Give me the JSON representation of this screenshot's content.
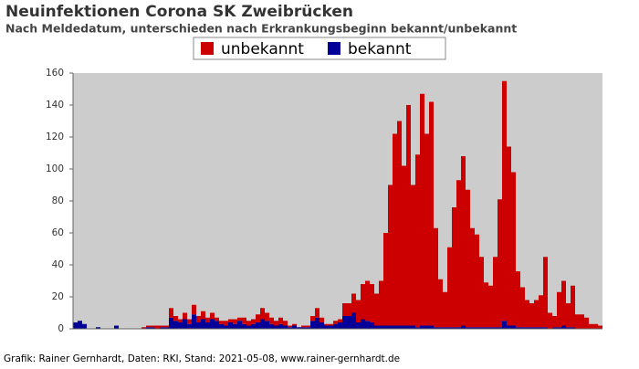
{
  "chart_data": {
    "type": "stacked-bar",
    "title": "Neuinfektionen Corona SK Zweibrücken",
    "subtitle": "Nach Meldedatum, unterschieden nach Erkrankungsbeginn bekannt/unbekannt",
    "footer": "Grafik: Rainer Gernhardt, Daten: RKI, Stand: 2021-05-08, www.rainer-gernhardt.de",
    "categories": [
      null,
      null,
      null,
      null,
      null,
      null,
      null,
      null,
      null,
      null,
      null,
      null,
      null,
      null,
      null,
      null,
      null,
      null,
      null,
      null,
      null,
      null,
      null,
      null,
      null,
      null,
      null,
      null,
      null,
      null,
      null,
      null,
      null,
      null,
      null,
      null,
      null,
      null,
      null,
      null,
      null,
      null,
      null,
      null,
      null,
      null,
      null,
      null,
      null,
      null,
      null,
      null,
      null,
      null,
      null,
      null,
      null,
      null,
      null,
      null,
      null,
      null,
      null,
      null,
      null,
      null,
      null,
      null,
      null,
      null,
      null,
      null,
      null,
      null,
      null,
      null,
      null,
      null,
      null,
      null,
      null,
      null,
      null,
      null,
      null,
      null,
      null,
      null,
      null,
      null,
      null,
      null,
      null,
      null,
      null,
      null,
      null,
      null,
      null,
      null,
      null,
      null,
      null,
      null,
      null,
      null,
      null,
      null,
      null,
      null,
      null,
      null,
      null,
      null,
      null,
      null
    ],
    "series": [
      {
        "name": "unbekannt",
        "color": "#cc0000",
        "values": [
          0,
          0,
          0,
          0,
          0,
          0,
          0,
          0,
          0,
          0,
          0,
          0,
          0,
          0,
          0,
          1,
          1,
          1,
          2,
          1,
          1,
          6,
          3,
          2,
          4,
          3,
          6,
          4,
          5,
          3,
          4,
          2,
          2,
          3,
          2,
          3,
          2,
          4,
          3,
          3,
          5,
          7,
          5,
          4,
          3,
          4,
          3,
          1,
          1,
          0,
          1,
          1,
          3,
          6,
          3,
          1,
          1,
          2,
          2,
          8,
          8,
          12,
          14,
          22,
          25,
          24,
          20,
          28,
          58,
          88,
          120,
          128,
          100,
          138,
          88,
          108,
          145,
          120,
          140,
          62,
          30,
          22,
          50,
          75,
          92,
          106,
          86,
          62,
          58,
          44,
          28,
          26,
          44,
          80,
          150,
          112,
          96,
          35,
          25,
          17,
          15,
          17,
          20,
          44,
          10,
          7,
          22,
          28,
          15,
          26,
          9,
          9,
          7,
          3,
          3,
          2
        ]
      },
      {
        "name": "bekannt",
        "color": "#000099",
        "values": [
          4,
          5,
          3,
          0,
          0,
          1,
          0,
          0,
          0,
          2,
          0,
          0,
          0,
          0,
          0,
          0,
          1,
          1,
          0,
          1,
          1,
          7,
          5,
          4,
          6,
          3,
          9,
          4,
          6,
          4,
          6,
          5,
          3,
          2,
          4,
          3,
          5,
          3,
          2,
          3,
          4,
          6,
          5,
          3,
          2,
          3,
          2,
          1,
          2,
          1,
          1,
          1,
          5,
          7,
          4,
          2,
          2,
          3,
          4,
          8,
          8,
          10,
          4,
          6,
          5,
          4,
          2,
          2,
          2,
          2,
          2,
          2,
          2,
          2,
          2,
          1,
          2,
          2,
          2,
          1,
          1,
          1,
          1,
          1,
          1,
          2,
          1,
          1,
          1,
          1,
          1,
          1,
          1,
          1,
          5,
          2,
          2,
          1,
          1,
          1,
          1,
          1,
          1,
          1,
          0,
          1,
          1,
          2,
          1,
          1,
          0,
          0,
          0,
          0,
          0,
          0
        ]
      }
    ],
    "ylim": [
      0,
      160
    ],
    "yticks": [
      0,
      20,
      40,
      60,
      80,
      100,
      120,
      140,
      160
    ],
    "legend": "top"
  }
}
